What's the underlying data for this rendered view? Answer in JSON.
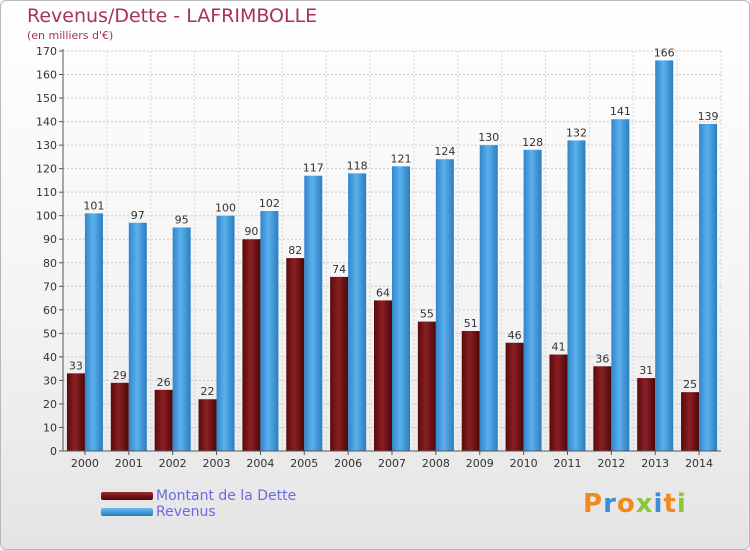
{
  "header": {
    "title": "Revenus/Dette - LAFRIMBOLLE",
    "subtitle": "(en milliers d'€)"
  },
  "legend": {
    "items": [
      {
        "label": "Montant de la Dette",
        "color": "#7a1518"
      },
      {
        "label": "Revenus",
        "color": "#3f9de0"
      }
    ]
  },
  "logo": {
    "text": "Proxiti",
    "letters": [
      {
        "char": "P",
        "color": "#f08a1e"
      },
      {
        "char": "r",
        "color": "#3a8fd8"
      },
      {
        "char": "o",
        "color": "#f08a1e"
      },
      {
        "char": "x",
        "color": "#8cc63f"
      },
      {
        "char": "i",
        "color": "#3a8fd8"
      },
      {
        "char": "t",
        "color": "#f08a1e"
      },
      {
        "char": "i",
        "color": "#8cc63f"
      }
    ]
  },
  "chart_data": {
    "type": "bar",
    "title": "Revenus/Dette - LAFRIMBOLLE",
    "subtitle": "(en milliers d'€)",
    "xlabel": "",
    "ylabel": "",
    "categories": [
      "2000",
      "2001",
      "2002",
      "2003",
      "2004",
      "2005",
      "2006",
      "2007",
      "2008",
      "2009",
      "2010",
      "2011",
      "2012",
      "2013",
      "2014"
    ],
    "series": [
      {
        "name": "Montant de la Dette",
        "color": "#7a1518",
        "values": [
          33,
          29,
          26,
          22,
          90,
          82,
          74,
          64,
          55,
          51,
          46,
          41,
          36,
          31,
          25
        ]
      },
      {
        "name": "Revenus",
        "color": "#3f9de0",
        "values": [
          101,
          97,
          95,
          100,
          102,
          117,
          118,
          121,
          124,
          130,
          128,
          132,
          141,
          166,
          139
        ]
      }
    ],
    "ylim": [
      0,
      170
    ],
    "yticks": [
      0,
      10,
      20,
      30,
      40,
      50,
      60,
      70,
      80,
      90,
      100,
      110,
      120,
      130,
      140,
      150,
      160,
      170
    ],
    "grid": true,
    "data_labels": true,
    "legend_position": "bottom-left"
  }
}
